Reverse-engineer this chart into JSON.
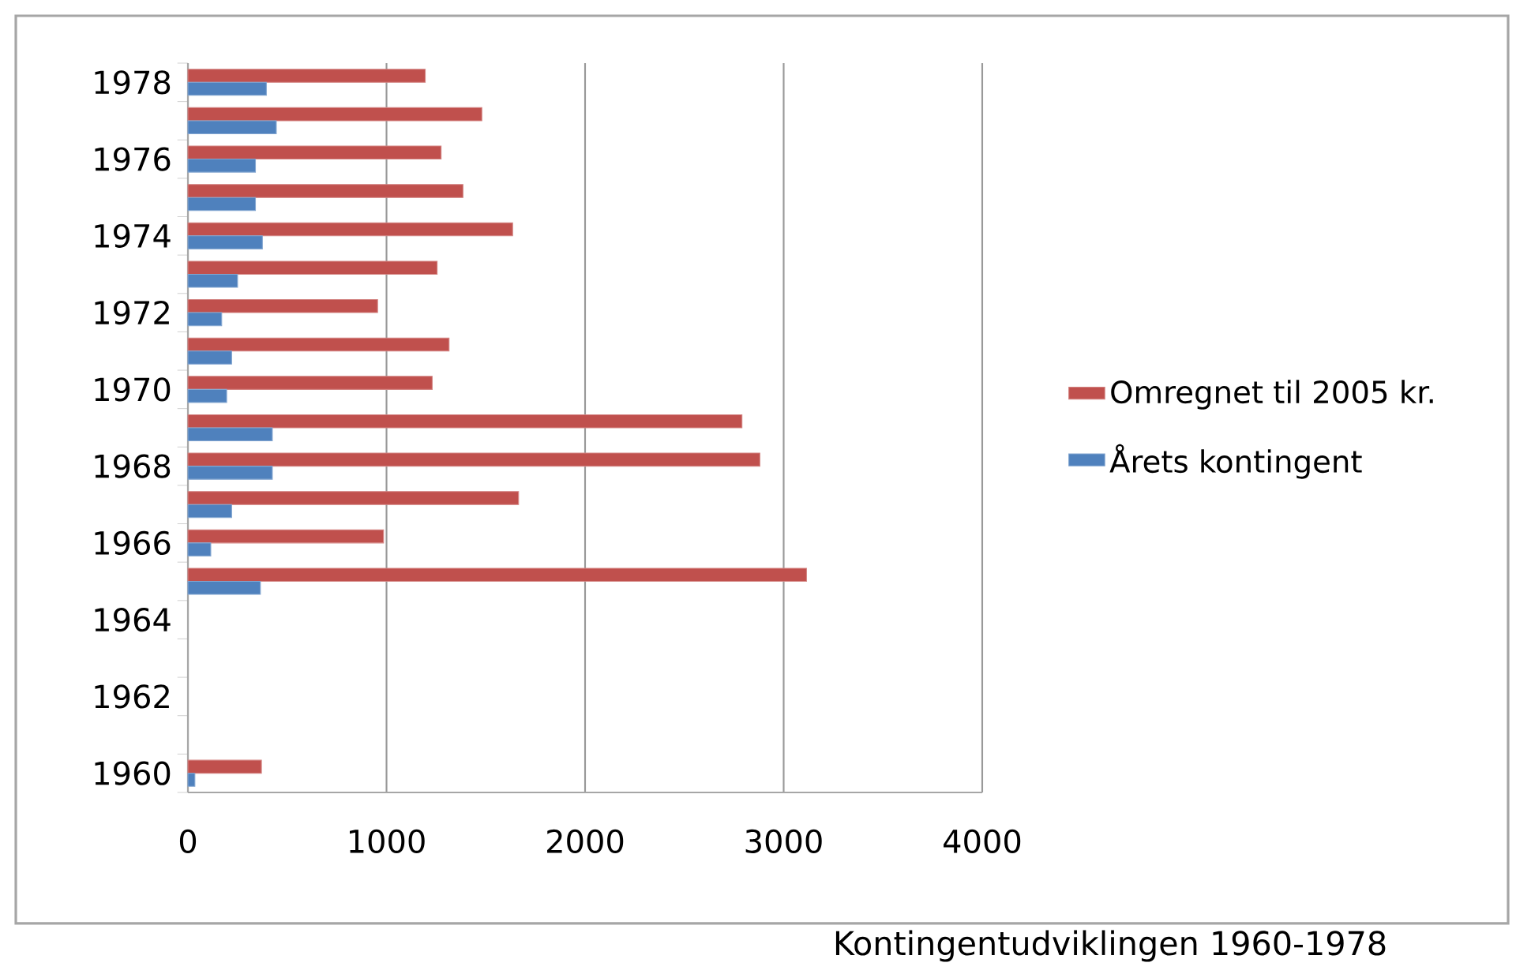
{
  "chart_data": {
    "type": "bar",
    "orientation": "horizontal",
    "categories": [
      "1978",
      null,
      "1976",
      null,
      "1974",
      null,
      "1972",
      null,
      "1970",
      null,
      "1968",
      null,
      "1966",
      null,
      "1964",
      null,
      "1962",
      null,
      "1960"
    ],
    "series": [
      {
        "name": "Omregnet til 2005 kr.",
        "color": "#c0504d",
        "values": [
          1195,
          1480,
          1275,
          1385,
          1635,
          1255,
          955,
          1315,
          1230,
          2790,
          2880,
          1665,
          985,
          3115,
          null,
          null,
          null,
          null,
          370
        ]
      },
      {
        "name": "Årets kontingent",
        "color": "#4f81bd",
        "values": [
          395,
          445,
          340,
          340,
          375,
          250,
          170,
          220,
          195,
          425,
          425,
          220,
          115,
          365,
          null,
          null,
          null,
          null,
          35
        ]
      }
    ],
    "xlim": [
      0,
      4000
    ],
    "xticks": [
      0,
      1000,
      2000,
      3000,
      4000
    ],
    "grid": "x",
    "legend": "right",
    "annotations": [
      "Kontingentudviklingen 1960-1978"
    ]
  }
}
